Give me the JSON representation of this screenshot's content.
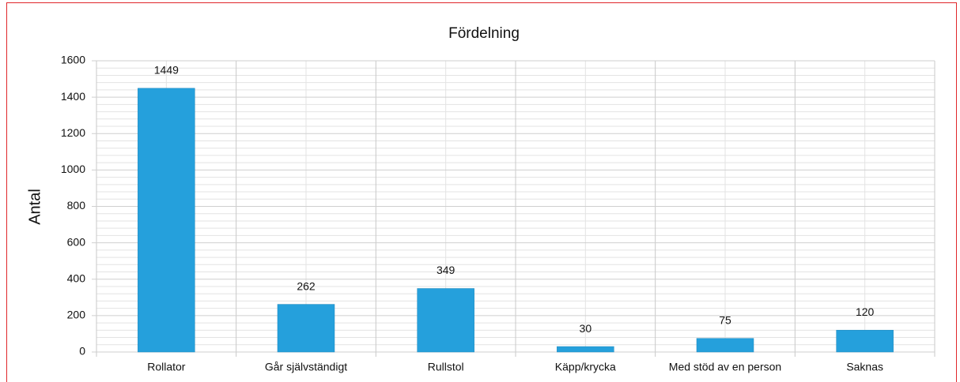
{
  "chart_data": {
    "type": "bar",
    "title": "Fördelning",
    "y_label": "Antal",
    "categories": [
      "Rollator",
      "Går självständigt",
      "Rullstol",
      "Käpp/krycka",
      "Med stöd av en person",
      "Saknas"
    ],
    "values": [
      1449,
      262,
      349,
      30,
      75,
      120
    ],
    "color": "#25a0dc",
    "ylim": [
      0,
      1600
    ],
    "yticks": [
      0,
      200,
      400,
      600,
      800,
      1000,
      1200,
      1400,
      1600
    ],
    "grid": true,
    "minor_grid": true
  }
}
